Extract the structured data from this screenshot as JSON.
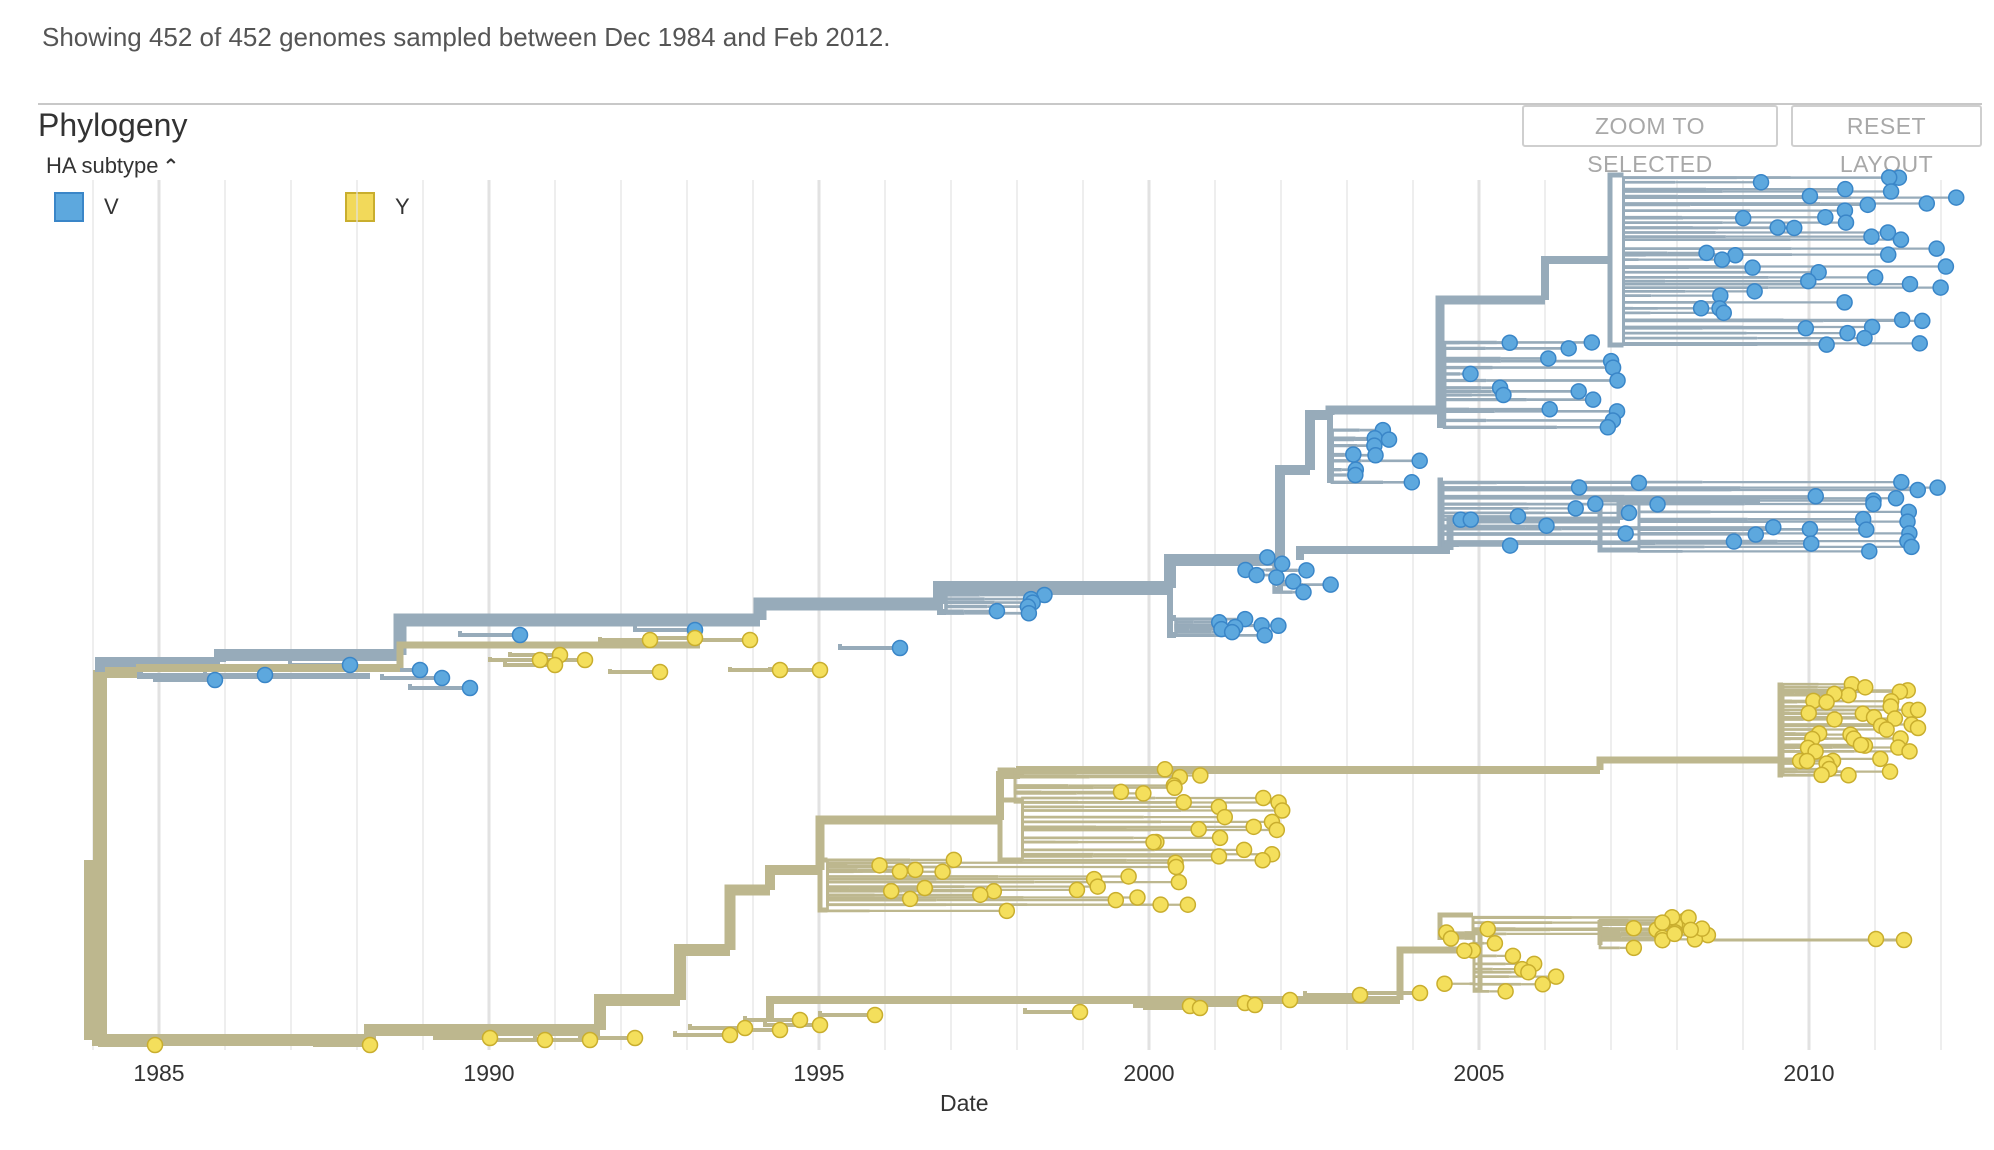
{
  "summary": "Showing 452 of 452 genomes sampled between Dec 1984 and Feb 2012.",
  "panel": {
    "title": "Phylogeny",
    "zoom_label": "ZOOM TO SELECTED",
    "reset_label": "RESET LAYOUT"
  },
  "legend": {
    "title": "HA subtype",
    "toggle_icon": "chevron-up-icon",
    "items": [
      {
        "label": "V",
        "color": "#5DA8DE"
      },
      {
        "label": "Y",
        "color": "#F2D95A"
      }
    ]
  },
  "axis": {
    "title": "Date",
    "ticks": [
      "1985",
      "1990",
      "1995",
      "2000",
      "2005",
      "2010"
    ]
  },
  "colors": {
    "branch_V": "#97ABBA",
    "branch_Y": "#BDB78E",
    "tip_V": "#5DA8DE",
    "tip_V_stroke": "#3A86C8",
    "tip_Y": "#F4DF5C",
    "tip_Y_stroke": "#C9AE2E",
    "grid": "#e2e2e2"
  }
}
